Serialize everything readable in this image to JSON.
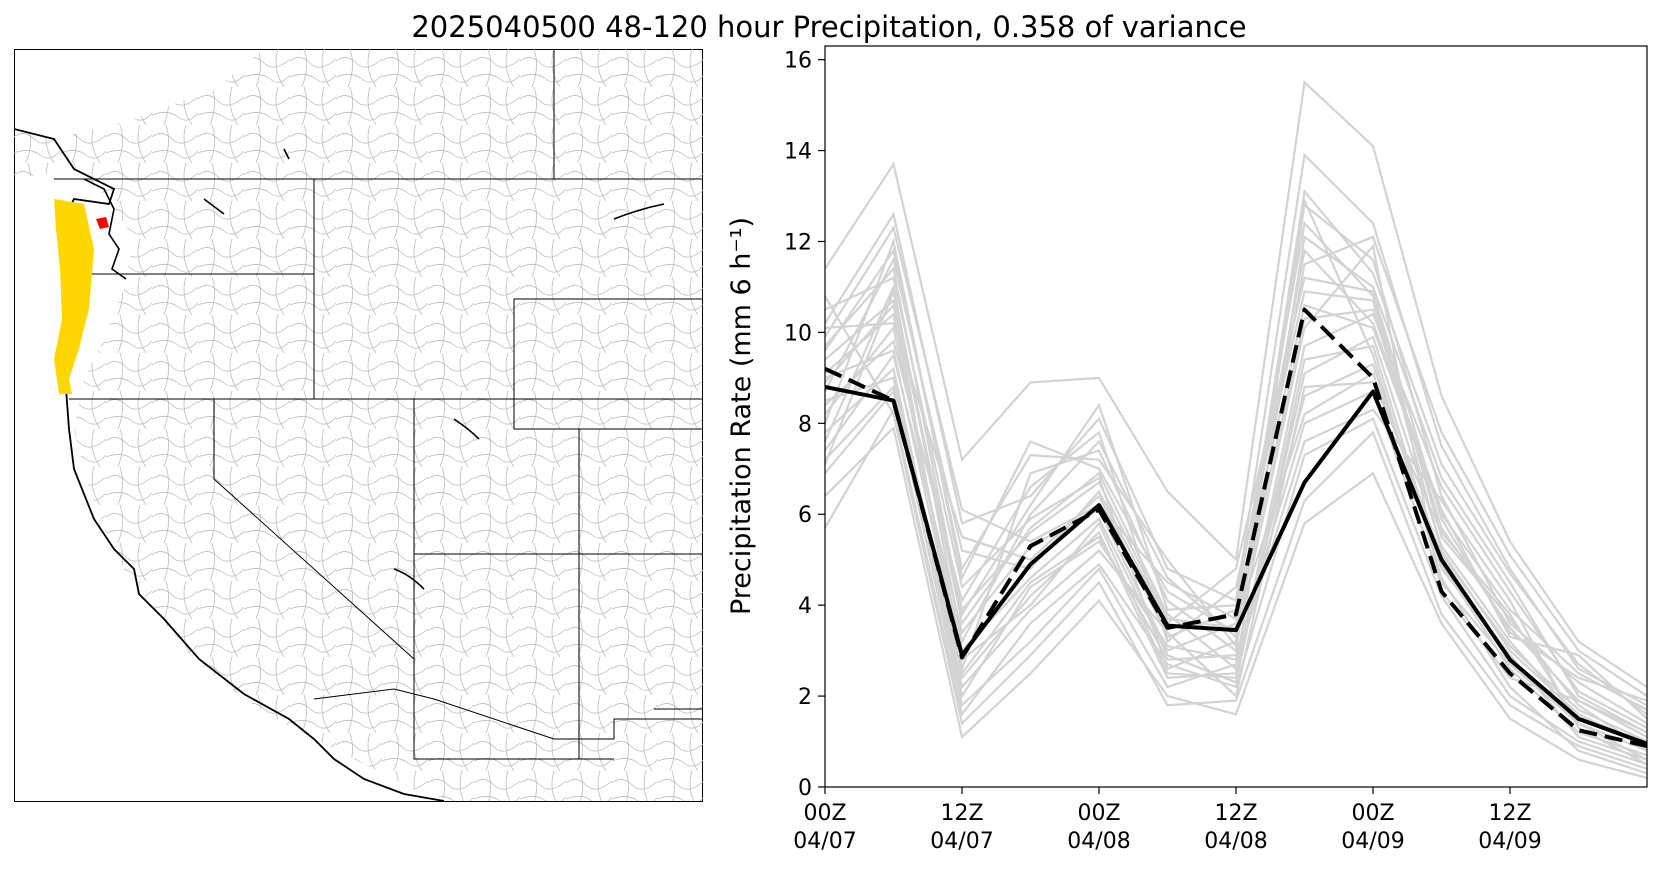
{
  "figure": {
    "title": "2025040500 48-120 hour Precipitation, 0.358 of variance"
  },
  "map": {
    "highlight_colors": {
      "primary": "#ffd700",
      "secondary": "#ff0000"
    }
  },
  "chart_data": {
    "type": "line",
    "ylabel": "Precipitation Rate (mm 6 h⁻¹)",
    "xlabel": "",
    "ylim": [
      0,
      16.3
    ],
    "yticks": [
      0,
      2,
      4,
      6,
      8,
      10,
      12,
      14,
      16
    ],
    "x_range": [
      0,
      12
    ],
    "xticks": [
      {
        "x": 0,
        "label1": "00Z",
        "label2": "04/07"
      },
      {
        "x": 2,
        "label1": "12Z",
        "label2": "04/07"
      },
      {
        "x": 4,
        "label1": "00Z",
        "label2": "04/08"
      },
      {
        "x": 6,
        "label1": "12Z",
        "label2": "04/08"
      },
      {
        "x": 8,
        "label1": "00Z",
        "label2": "04/09"
      },
      {
        "x": 10,
        "label1": "12Z",
        "label2": "04/09"
      }
    ],
    "x": [
      0,
      1,
      2,
      3,
      4,
      5,
      6,
      7,
      8,
      9,
      10,
      11,
      12
    ],
    "series": [
      {
        "style": "solid",
        "color": "#000000",
        "width": 4,
        "values": [
          8.8,
          8.5,
          2.9,
          4.9,
          6.2,
          3.55,
          3.45,
          6.7,
          8.7,
          5.0,
          2.8,
          1.5,
          0.95
        ]
      },
      {
        "style": "dashed",
        "color": "#000000",
        "width": 4,
        "values": [
          9.2,
          8.5,
          2.85,
          5.3,
          6.1,
          3.5,
          3.8,
          10.5,
          9.0,
          4.3,
          2.5,
          1.25,
          0.9
        ]
      }
    ],
    "ensemble": {
      "color": "#d3d3d3",
      "members": [
        [
          11.4,
          13.7,
          7.2,
          8.9,
          9.0,
          6.5,
          5.0,
          15.5,
          14.1,
          8.6,
          5.4,
          3.2,
          2.2
        ],
        [
          10.2,
          12.6,
          5.8,
          6.4,
          8.1,
          4.8,
          4.1,
          13.9,
          12.4,
          7.5,
          4.8,
          2.6,
          1.8
        ],
        [
          9.6,
          11.8,
          4.8,
          7.3,
          7.2,
          5.0,
          3.1,
          12.8,
          11.6,
          6.4,
          3.6,
          2.3,
          1.4
        ],
        [
          7.1,
          10.9,
          3.6,
          5.7,
          6.9,
          3.8,
          2.6,
          12.1,
          11.0,
          6.8,
          4.5,
          2.0,
          1.2
        ],
        [
          8.4,
          9.8,
          4.1,
          6.6,
          7.8,
          3.2,
          4.4,
          10.9,
          10.7,
          5.2,
          3.0,
          1.6,
          0.9
        ],
        [
          9.9,
          12.3,
          6.1,
          5.4,
          6.2,
          4.5,
          3.7,
          11.8,
          10.2,
          6.1,
          3.3,
          2.9,
          1.5
        ],
        [
          8.2,
          10.1,
          3.0,
          4.6,
          5.9,
          2.9,
          2.3,
          9.4,
          9.7,
          4.8,
          2.9,
          1.1,
          0.6
        ],
        [
          7.8,
          9.2,
          2.2,
          3.9,
          5.2,
          3.4,
          2.0,
          8.8,
          8.9,
          5.6,
          3.8,
          1.4,
          0.8
        ],
        [
          10.5,
          11.2,
          4.4,
          5.9,
          6.8,
          2.6,
          3.2,
          10.1,
          11.9,
          4.3,
          2.4,
          1.9,
          1.1
        ],
        [
          6.9,
          8.7,
          1.8,
          3.2,
          4.8,
          2.2,
          2.7,
          7.6,
          8.3,
          6.3,
          4.1,
          1.3,
          0.5
        ],
        [
          9.1,
          10.4,
          2.6,
          6.9,
          7.4,
          4.1,
          3.0,
          12.9,
          9.5,
          4.6,
          2.2,
          0.8,
          0.3
        ],
        [
          8.7,
          11.6,
          5.2,
          4.8,
          6.5,
          3.6,
          4.8,
          11.2,
          10.9,
          5.9,
          3.4,
          2.4,
          1.9
        ],
        [
          10.8,
          8.2,
          1.4,
          2.9,
          4.5,
          1.8,
          1.9,
          6.3,
          7.8,
          3.8,
          1.8,
          0.9,
          0.4
        ],
        [
          7.4,
          9.5,
          3.4,
          5.3,
          6.1,
          3.0,
          3.6,
          8.2,
          9.1,
          5.1,
          3.1,
          1.7,
          1.0
        ],
        [
          9.4,
          10.7,
          2.4,
          4.2,
          5.6,
          2.4,
          2.5,
          9.7,
          10.4,
          6.6,
          4.3,
          2.1,
          1.3
        ],
        [
          8.0,
          12.0,
          4.6,
          7.6,
          7.0,
          4.3,
          3.4,
          13.1,
          11.3,
          7.1,
          4.7,
          2.7,
          1.6
        ],
        [
          6.4,
          7.9,
          1.1,
          2.5,
          4.1,
          2.0,
          1.6,
          5.8,
          6.9,
          3.6,
          1.5,
          0.6,
          0.2
        ],
        [
          9.7,
          11.4,
          3.8,
          6.2,
          8.4,
          3.9,
          4.0,
          12.4,
          10.8,
          5.5,
          3.7,
          1.8,
          0.8
        ],
        [
          8.5,
          9.0,
          2.0,
          4.4,
          5.4,
          3.1,
          2.8,
          8.6,
          9.3,
          4.9,
          2.6,
          1.2,
          0.7
        ],
        [
          5.7,
          8.3,
          1.6,
          3.6,
          4.9,
          2.7,
          2.2,
          7.3,
          8.1,
          4.2,
          2.0,
          1.0,
          0.5
        ],
        [
          10.1,
          10.2,
          5.5,
          5.0,
          6.4,
          3.3,
          3.9,
          10.6,
          10.1,
          6.0,
          3.9,
          2.5,
          1.7
        ],
        [
          7.6,
          11.0,
          3.2,
          6.0,
          7.6,
          4.6,
          3.3,
          11.5,
          12.1,
          7.8,
          5.1,
          3.0,
          2.0
        ],
        [
          9.0,
          9.6,
          2.8,
          4.0,
          5.8,
          2.5,
          2.4,
          9.1,
          9.9,
          5.3,
          3.2,
          1.5,
          0.9
        ],
        [
          8.9,
          10.6,
          3.9,
          5.6,
          6.7,
          3.7,
          3.5,
          10.3,
          10.5,
          5.7,
          3.5,
          1.9,
          1.2
        ],
        [
          7.2,
          8.8,
          2.5,
          4.5,
          5.5,
          2.8,
          2.9,
          8.0,
          8.7,
          4.5,
          2.7,
          1.4,
          0.6
        ]
      ]
    }
  }
}
